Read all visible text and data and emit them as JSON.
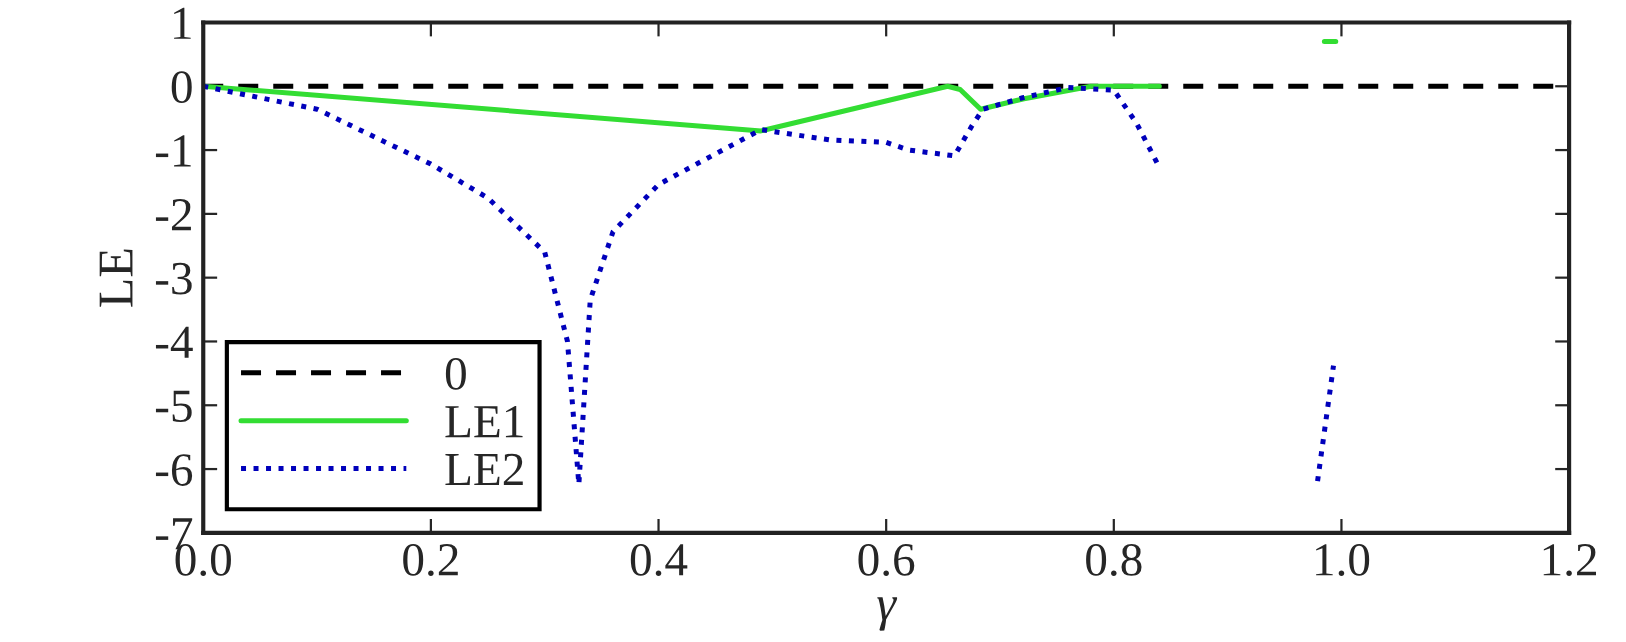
{
  "chart_data": {
    "type": "line",
    "xlabel": "γ",
    "ylabel": "LE",
    "xlim": [
      0.0,
      1.2
    ],
    "xticks": [
      {
        "value": 0,
        "label": "0.0"
      },
      0.2,
      0.4,
      0.6,
      0.8,
      {
        "value": 1.0,
        "label": "1.0"
      },
      1.2
    ],
    "ylim": [
      -7,
      1
    ],
    "yticks": [
      -7,
      -6,
      -5,
      -4,
      -3,
      -2,
      -1,
      0,
      1
    ],
    "grid": false,
    "legend": "bottom left",
    "marker": "none",
    "series": [
      {
        "name": "0",
        "color": "#000000",
        "line_style": "dashed",
        "x": [
          0.0,
          1.2
        ],
        "values": [
          0,
          0
        ]
      },
      {
        "name": "LE1",
        "color": "#33dd33",
        "line_style": "solid",
        "x": [
          0.0,
          0.49,
          0.654,
          0.665,
          0.683,
          0.72,
          0.78,
          0.84,
          0.9,
          0.985,
          0.995
        ],
        "values": [
          0.0,
          -0.7,
          0.0,
          -0.05,
          -0.36,
          -0.2,
          0.0,
          0.0,
          null,
          0.7,
          0.7
        ]
      },
      {
        "name": "LE2",
        "color": "#0000bb",
        "line_style": "dotted",
        "x": [
          0.0,
          0.1,
          0.2,
          0.25,
          0.3,
          0.32,
          0.33,
          0.34,
          0.36,
          0.4,
          0.45,
          0.49,
          0.55,
          0.6,
          0.62,
          0.66,
          0.675,
          0.685,
          0.72,
          0.76,
          0.8,
          0.82,
          0.84,
          0.9,
          0.979,
          0.993
        ],
        "values": [
          0.0,
          -0.36,
          -1.22,
          -1.75,
          -2.6,
          -4.0,
          -6.24,
          -3.35,
          -2.28,
          -1.54,
          -1.06,
          -0.68,
          -0.84,
          -0.88,
          -1.0,
          -1.09,
          -0.63,
          -0.36,
          -0.18,
          -0.02,
          -0.06,
          -0.58,
          -1.27,
          null,
          -6.19,
          -4.38
        ]
      }
    ]
  }
}
